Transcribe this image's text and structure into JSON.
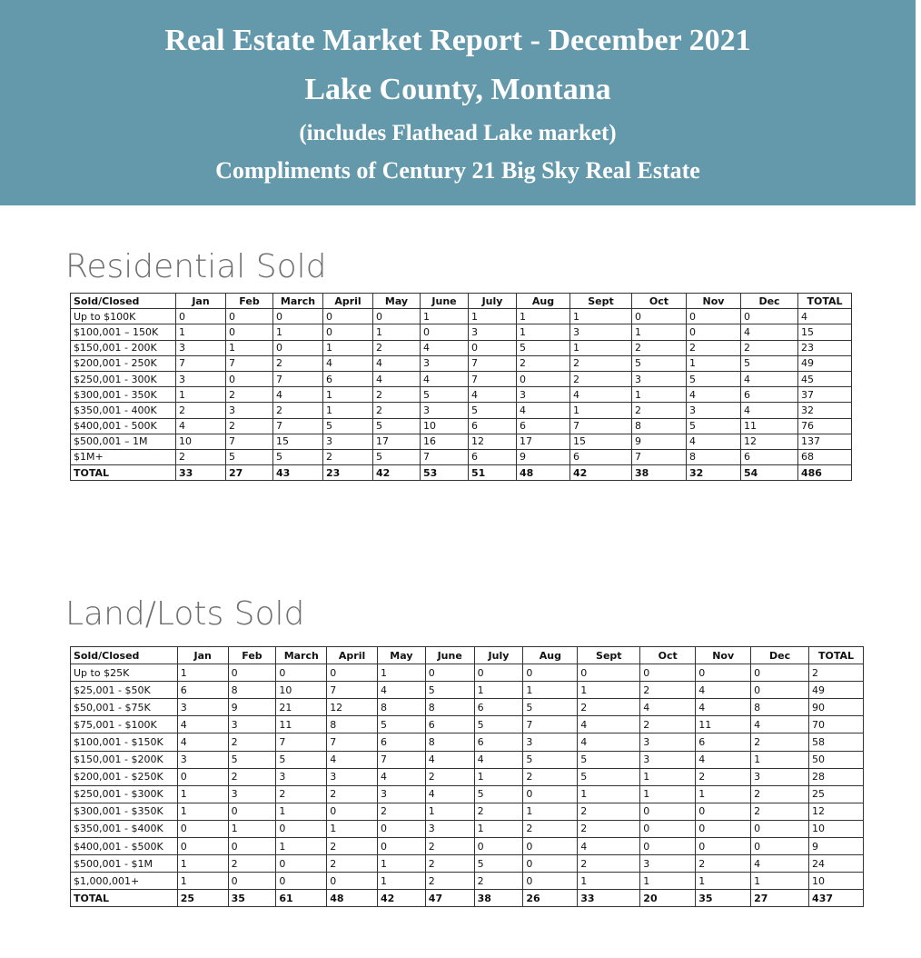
{
  "header": {
    "title": "Real Estate Market Report - December 2021",
    "subtitle": "Lake County, Montana",
    "note": "(includes Flathead Lake market)",
    "credit": "Compliments of Century 21 Big Sky Real Estate"
  },
  "sections": [
    {
      "title": "Residential Sold",
      "table": {
        "columns": [
          "Sold/Closed",
          "Jan",
          "Feb",
          "March",
          "April",
          "May",
          "June",
          "July",
          "Aug",
          "Sept",
          "Oct",
          "Nov",
          "Dec",
          "TOTAL"
        ],
        "rows": [
          [
            "Up to $100K",
            0,
            0,
            0,
            0,
            0,
            1,
            1,
            1,
            1,
            0,
            0,
            0,
            4
          ],
          [
            "$100,001 – 150K",
            1,
            0,
            1,
            0,
            1,
            0,
            3,
            1,
            3,
            1,
            0,
            4,
            15
          ],
          [
            "$150,001 - 200K",
            3,
            1,
            0,
            1,
            2,
            4,
            0,
            5,
            1,
            2,
            2,
            2,
            23
          ],
          [
            "$200,001 - 250K",
            7,
            7,
            2,
            4,
            4,
            3,
            7,
            2,
            2,
            5,
            1,
            5,
            49
          ],
          [
            "$250,001 - 300K",
            3,
            0,
            7,
            6,
            4,
            4,
            7,
            0,
            2,
            3,
            5,
            4,
            45
          ],
          [
            "$300,001 - 350K",
            1,
            2,
            4,
            1,
            2,
            5,
            4,
            3,
            4,
            1,
            4,
            6,
            37
          ],
          [
            "$350,001 - 400K",
            2,
            3,
            2,
            1,
            2,
            3,
            5,
            4,
            1,
            2,
            3,
            4,
            32
          ],
          [
            "$400,001 - 500K",
            4,
            2,
            7,
            5,
            5,
            10,
            6,
            6,
            7,
            8,
            5,
            11,
            76
          ],
          [
            "$500,001 – 1M",
            10,
            7,
            15,
            3,
            17,
            16,
            12,
            17,
            15,
            9,
            4,
            12,
            137
          ],
          [
            "$1M+",
            2,
            5,
            5,
            2,
            5,
            7,
            6,
            9,
            6,
            7,
            8,
            6,
            68
          ],
          [
            "TOTAL",
            33,
            27,
            43,
            23,
            42,
            53,
            51,
            48,
            42,
            38,
            32,
            54,
            486
          ]
        ]
      }
    },
    {
      "title": "Land/Lots Sold",
      "table": {
        "columns": [
          "Sold/Closed",
          "Jan",
          "Feb",
          "March",
          "April",
          "May",
          "June",
          "July",
          "Aug",
          "Sept",
          "Oct",
          "Nov",
          "Dec",
          "TOTAL"
        ],
        "rows": [
          [
            "Up to $25K",
            1,
            0,
            0,
            0,
            1,
            0,
            0,
            0,
            0,
            0,
            0,
            0,
            2
          ],
          [
            "$25,001 - $50K",
            6,
            8,
            10,
            7,
            4,
            5,
            1,
            1,
            1,
            2,
            4,
            0,
            49
          ],
          [
            "$50,001 - $75K",
            3,
            9,
            21,
            12,
            8,
            8,
            6,
            5,
            2,
            4,
            4,
            8,
            90
          ],
          [
            "$75,001 - $100K",
            4,
            3,
            11,
            8,
            5,
            6,
            5,
            7,
            4,
            2,
            11,
            4,
            70
          ],
          [
            "$100,001 - $150K",
            4,
            2,
            7,
            7,
            6,
            8,
            6,
            3,
            4,
            3,
            6,
            2,
            58
          ],
          [
            "$150,001 - $200K",
            3,
            5,
            5,
            4,
            7,
            4,
            4,
            5,
            5,
            3,
            4,
            1,
            50
          ],
          [
            "$200,001 - $250K",
            0,
            2,
            3,
            3,
            4,
            2,
            1,
            2,
            5,
            1,
            2,
            3,
            28
          ],
          [
            "$250,001 - $300K",
            1,
            3,
            2,
            2,
            3,
            4,
            5,
            0,
            1,
            1,
            1,
            2,
            25
          ],
          [
            "$300,001 - $350K",
            1,
            0,
            1,
            0,
            2,
            1,
            2,
            1,
            2,
            0,
            0,
            2,
            12
          ],
          [
            "$350,001 - $400K",
            0,
            1,
            0,
            1,
            0,
            3,
            1,
            2,
            2,
            0,
            0,
            0,
            10
          ],
          [
            "$400,001 - $500K",
            0,
            0,
            1,
            2,
            0,
            2,
            0,
            0,
            4,
            0,
            0,
            0,
            9
          ],
          [
            "$500,001 - $1M",
            1,
            2,
            0,
            2,
            1,
            2,
            5,
            0,
            2,
            3,
            2,
            4,
            24
          ],
          [
            "$1,000,001+",
            1,
            0,
            0,
            0,
            1,
            2,
            2,
            0,
            1,
            1,
            1,
            1,
            10
          ],
          [
            "TOTAL",
            25,
            35,
            61,
            48,
            42,
            47,
            38,
            26,
            33,
            20,
            35,
            27,
            437
          ]
        ]
      }
    }
  ]
}
